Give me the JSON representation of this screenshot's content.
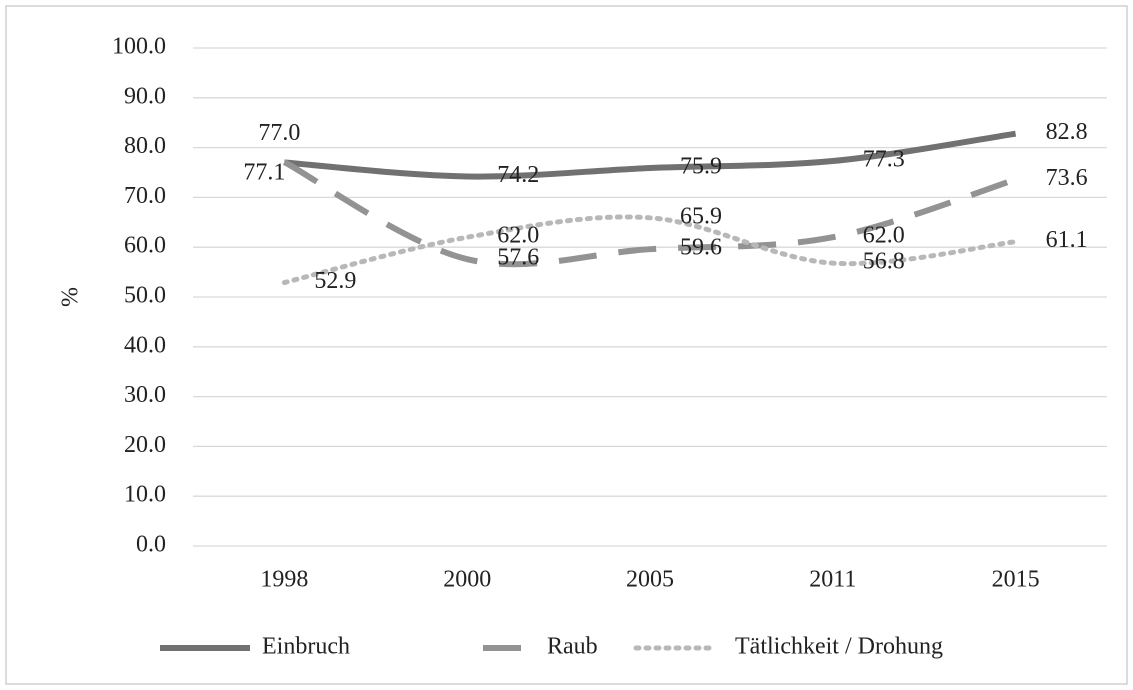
{
  "chart_data": {
    "type": "line",
    "categories": [
      "1998",
      "2000",
      "2005",
      "2011",
      "2015"
    ],
    "y_label": "%",
    "ylim": [
      0,
      100
    ],
    "yticks": [
      {
        "value": 0,
        "label": "0.0"
      },
      {
        "value": 10,
        "label": "10.0"
      },
      {
        "value": 20,
        "label": "20.0"
      },
      {
        "value": 30,
        "label": "30.0"
      },
      {
        "value": 40,
        "label": "40.0"
      },
      {
        "value": 50,
        "label": "50.0"
      },
      {
        "value": 60,
        "label": "60.0"
      },
      {
        "value": 70,
        "label": "70.0"
      },
      {
        "value": 80,
        "label": "80.0"
      },
      {
        "value": 90,
        "label": "90.0"
      },
      {
        "value": 100,
        "label": "100.0"
      }
    ],
    "grid": true,
    "legend": "bottom",
    "series": [
      {
        "name": "Einbruch",
        "color": "#717171",
        "style": "solid",
        "values": [
          77.0,
          74.2,
          75.9,
          77.3,
          82.8
        ],
        "value_labels": [
          "77.0",
          "74.2",
          "75.9",
          "77.3",
          "82.8"
        ]
      },
      {
        "name": "Raub",
        "color": "#939393",
        "style": "dashed",
        "values": [
          77.1,
          57.6,
          59.6,
          62.0,
          73.6
        ],
        "value_labels": [
          "77.1",
          "57.6",
          "59.6",
          "62.0",
          "73.6"
        ]
      },
      {
        "name": "Tätlichkeit / Drohung",
        "color": "#b8b8b8",
        "style": "dotted",
        "values": [
          52.9,
          62.0,
          65.9,
          56.8,
          61.1
        ],
        "value_labels": [
          "52.9",
          "62.0",
          "65.9",
          "56.8",
          "61.1"
        ]
      }
    ]
  }
}
